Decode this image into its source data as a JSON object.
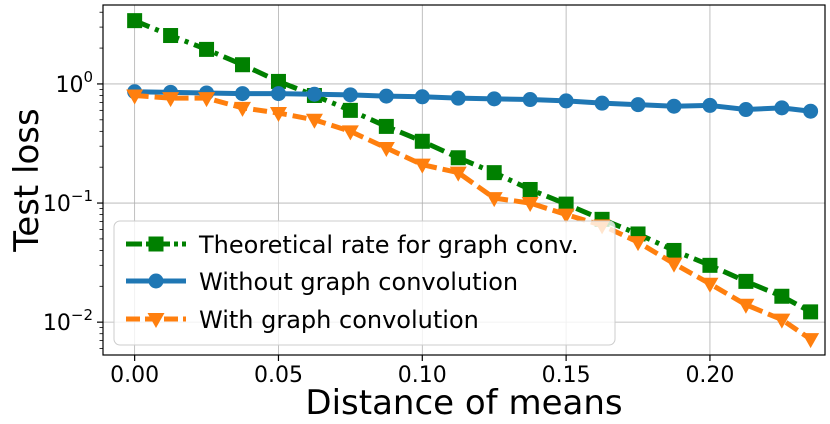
{
  "chart_data": {
    "type": "line",
    "title": "",
    "xlabel": "Distance of means",
    "ylabel": "Test loss",
    "yscale": "log",
    "xlim": [
      -0.011,
      0.24
    ],
    "ylim": [
      0.0053,
      4.6
    ],
    "xticks": [
      0.0,
      0.05,
      0.1,
      0.15,
      0.2
    ],
    "xtick_labels": [
      "0.00",
      "0.05",
      "0.10",
      "0.15",
      "0.20"
    ],
    "yticks": [
      {
        "value": 1,
        "base": "10",
        "exp": "0"
      },
      {
        "value": 0.1,
        "base": "10",
        "exp": "−1"
      },
      {
        "value": 0.01,
        "base": "10",
        "exp": "−2"
      }
    ],
    "grid": true,
    "legend_position": "lower-left",
    "x": [
      0.0,
      0.0125,
      0.025,
      0.0375,
      0.05,
      0.0625,
      0.075,
      0.0875,
      0.1,
      0.1125,
      0.125,
      0.1375,
      0.15,
      0.1625,
      0.175,
      0.1875,
      0.2,
      0.2125,
      0.225,
      0.235
    ],
    "series": [
      {
        "name": "Theoretical rate for graph conv.",
        "color": "#008000",
        "marker": "square",
        "linestyle": "dashdot",
        "values": [
          3.4,
          2.55,
          1.95,
          1.45,
          1.05,
          0.8,
          0.6,
          0.44,
          0.33,
          0.24,
          0.18,
          0.13,
          0.098,
          0.073,
          0.055,
          0.04,
          0.03,
          0.022,
          0.0165,
          0.0122
        ]
      },
      {
        "name": "Without graph convolution",
        "color": "#1f77b4",
        "marker": "circle",
        "linestyle": "solid",
        "values": [
          0.86,
          0.85,
          0.84,
          0.83,
          0.83,
          0.82,
          0.81,
          0.79,
          0.78,
          0.76,
          0.75,
          0.74,
          0.72,
          0.69,
          0.67,
          0.65,
          0.66,
          0.61,
          0.63,
          0.59
        ]
      },
      {
        "name": "With graph convolution",
        "color": "#ff7f0e",
        "marker": "triangle-down",
        "linestyle": "dashed",
        "values": [
          0.8,
          0.76,
          0.76,
          0.63,
          0.57,
          0.5,
          0.4,
          0.29,
          0.21,
          0.18,
          0.11,
          0.1,
          0.08,
          0.065,
          0.047,
          0.031,
          0.021,
          0.014,
          0.0105,
          0.0072
        ]
      }
    ]
  }
}
